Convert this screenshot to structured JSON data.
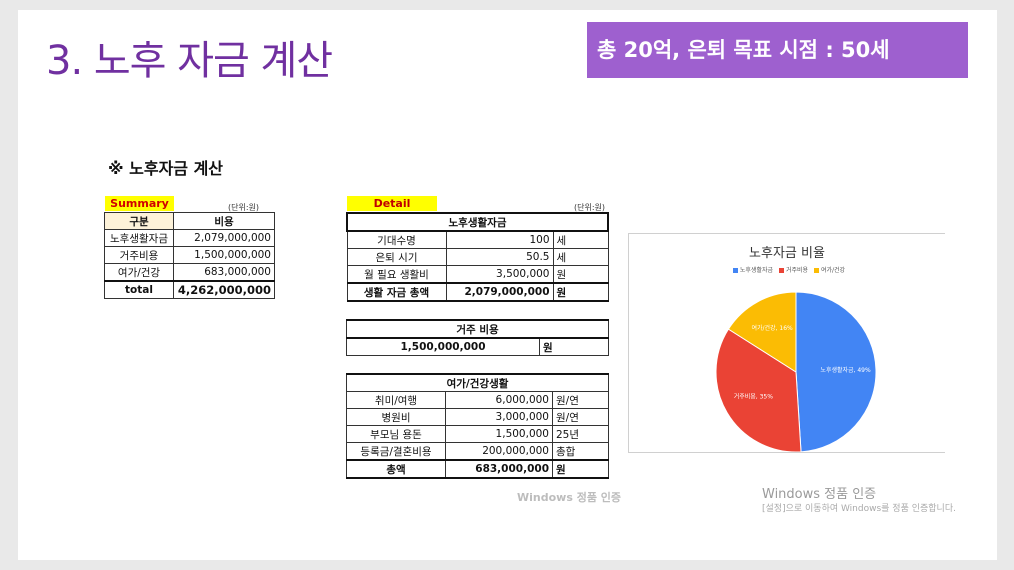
{
  "title": "3. 노후 자금 계산",
  "goal_box": "총 20억, 은퇴 목표 시점  : 50세",
  "heading": "※ 노후자금 계산",
  "summary": {
    "tag": "Summary",
    "unit": "(단위:원)",
    "headers": [
      "구분",
      "비용"
    ],
    "rows": [
      {
        "label": "노후생활자금",
        "value": "2,079,000,000"
      },
      {
        "label": "거주비용",
        "value": "1,500,000,000"
      },
      {
        "label": "여가/건강",
        "value": "683,000,000"
      }
    ],
    "total": {
      "label": "total",
      "value": "4,262,000,000"
    }
  },
  "detail": {
    "tag": "Detail",
    "unit": "(단위:원)",
    "living": {
      "header": "노후생활자금",
      "rows": [
        {
          "label": "기대수명",
          "value": "100",
          "unit": "세"
        },
        {
          "label": "은퇴 시기",
          "value": "50.5",
          "unit": "세"
        },
        {
          "label": "월 필요 생활비",
          "value": "3,500,000",
          "unit": "원"
        }
      ],
      "total": {
        "label": "생활 자금 총액",
        "value": "2,079,000,000",
        "unit": "원"
      }
    },
    "housing": {
      "header": "거주 비용",
      "value": "1,500,000,000",
      "unit": "원"
    },
    "leisure": {
      "header": "여가/건강생활",
      "rows": [
        {
          "label": "취미/여행",
          "value": "6,000,000",
          "unit": "원/연"
        },
        {
          "label": "병원비",
          "value": "3,000,000",
          "unit": "원/연"
        },
        {
          "label": "부모님 용돈",
          "value": "1,500,000",
          "unit": "25년"
        },
        {
          "label": "등록금/결혼비용",
          "value": "200,000,000",
          "unit": "총합"
        }
      ],
      "total": {
        "label": "총액",
        "value": "683,000,000",
        "unit": "원"
      }
    }
  },
  "watermark_small": "Windows 정품 인증",
  "watermark_line1": "Windows 정품 인증",
  "watermark_line2": "[설정]으로 이동하여 Windows를 정품 인증합니다.",
  "chart_data": {
    "type": "pie",
    "title": "노후자금 비율",
    "legend_position": "top",
    "slices": [
      {
        "name": "노후생활자금",
        "value": 49,
        "label": "노후생활자금, 49%",
        "color": "#4285f4"
      },
      {
        "name": "거주비용",
        "value": 35,
        "label": "거주비용, 35%",
        "color": "#ea4335"
      },
      {
        "name": "여가/건강",
        "value": 16,
        "label": "여가/건강, 16%",
        "color": "#fbbc04"
      }
    ]
  }
}
